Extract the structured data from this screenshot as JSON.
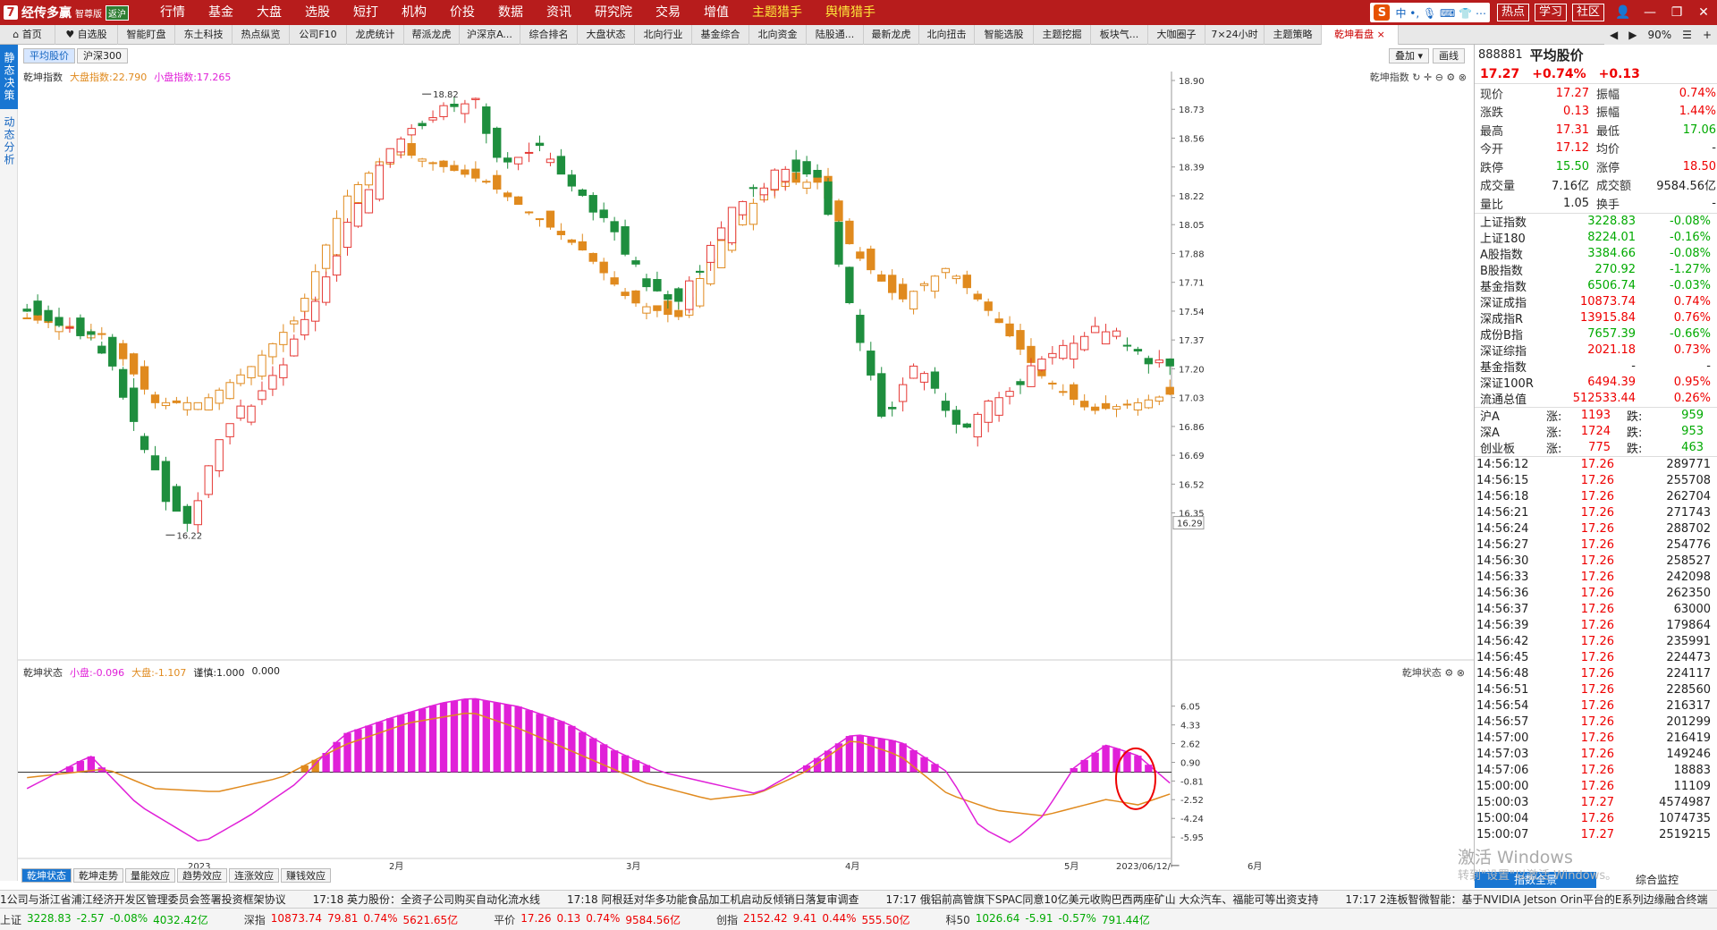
{
  "app": {
    "logo": "经传多赢",
    "edition": "智尊版",
    "badge": "返沪"
  },
  "menu": [
    {
      "label": "行情",
      "dot": true
    },
    {
      "label": "基金"
    },
    {
      "label": "大盘"
    },
    {
      "label": "选股",
      "dot": true
    },
    {
      "label": "短打",
      "dot": true
    },
    {
      "label": "机构"
    },
    {
      "label": "价投",
      "dot": true
    },
    {
      "label": "数据"
    },
    {
      "label": "资讯",
      "dot": true
    },
    {
      "label": "研究院"
    },
    {
      "label": "交易",
      "dot": true
    },
    {
      "label": "增值",
      "dot": true
    },
    {
      "label": "主题猎手",
      "y": true,
      "dot": true
    },
    {
      "label": "舆情猎手",
      "y": true
    }
  ],
  "ime": {
    "logo": "S",
    "text": "中 •, 🎙 ⌨ 👕 ⋯"
  },
  "header_btns": [
    "热点",
    "学习",
    "社区"
  ],
  "window_btns": [
    "👤",
    "—",
    "❐",
    "✕"
  ],
  "tabs": [
    "⌂ 首页",
    "♥ 自选股",
    "智能盯盘",
    "东土科技",
    "热点纵览",
    "公司F10",
    "龙虎统计",
    "帮派龙虎",
    "沪深京A...",
    "综合排名",
    "大盘状态",
    "北向行业",
    "基金综合",
    "北向资金",
    "陆股通...",
    "最新龙虎",
    "北向扭击",
    "智能选股",
    "主题挖掘",
    "板块气...",
    "大咖圈子",
    "7×24小时",
    "主题策略",
    "乾坤看盘 ×"
  ],
  "tabs_right": [
    "◀",
    "▶",
    "90%",
    "☰",
    "+"
  ],
  "sidebar": [
    "静态决策",
    "动态分析"
  ],
  "subtabs": [
    "平均股价",
    "沪深300"
  ],
  "overlay_btns": [
    "叠加 ▾",
    "画线"
  ],
  "legend_main": {
    "name": "乾坤指数",
    "big": "大盘指数:22.790",
    "small": "小盘指数:17.265"
  },
  "top_right_title": "乾坤指数 ↻ ✛ ⊖ ⚙ ⊗",
  "legend_sub": {
    "name": "乾坤状态",
    "small": "小盘:-0.096",
    "big": "大盘:-1.107",
    "c1": "谨慎:1.000",
    "c2": "0.000"
  },
  "sub_right_title": "乾坤状态 ⚙ ⊗",
  "bottom_tabs": [
    "乾坤状态",
    "乾坤走势",
    "量能效应",
    "趋势效应",
    "连涨效应",
    "赚钱效应"
  ],
  "chart_data": {
    "type": "candlestick",
    "title": "乾坤指数",
    "y_ticks": [
      "18.90",
      "18.73",
      "18.56",
      "18.39",
      "18.22",
      "18.05",
      "17.88",
      "17.71",
      "17.54",
      "17.37",
      "17.20",
      "17.03",
      "16.86",
      "16.69",
      "16.52",
      "16.35"
    ],
    "last_price_tag": "16.29",
    "high_label": "18.82",
    "low_label": "16.22",
    "x_labels": [
      "2023",
      "2月",
      "3月",
      "4月",
      "5月",
      "6月"
    ],
    "date_tag": "2023/06/12/一",
    "ylim": [
      16.29,
      18.9
    ],
    "series_note": "orange = 大盘指数, green/red = 小盘指数",
    "sub_y_ticks": [
      "6.05",
      "4.33",
      "2.62",
      "0.90",
      "-0.81",
      "-2.52",
      "-4.24",
      "-5.95"
    ],
    "sub_ylim": [
      -7.5,
      7.5
    ]
  },
  "stock": {
    "code": "888881",
    "name": "平均股价",
    "price": "17.27",
    "pct": "+0.74%",
    "chg": "+0.13"
  },
  "quote": [
    [
      "现价",
      "17.27",
      "振幅",
      "0.74%"
    ],
    [
      "涨跌",
      "0.13",
      "振幅",
      "1.44%"
    ],
    [
      "最高",
      "17.31",
      "最低",
      "17.06"
    ],
    [
      "今开",
      "17.12",
      "均价",
      "-"
    ],
    [
      "跌停",
      "15.50",
      "涨停",
      "18.50"
    ],
    [
      "成交量",
      "7.16亿",
      "成交额",
      "9584.56亿"
    ],
    [
      "量比",
      "1.05",
      "换手",
      "-"
    ]
  ],
  "indices": [
    [
      "上证指数",
      "3228.83",
      "-0.08%"
    ],
    [
      "上证180",
      "8224.01",
      "-0.16%"
    ],
    [
      "A股指数",
      "3384.66",
      "-0.08%"
    ],
    [
      "B股指数",
      "270.92",
      "-1.27%"
    ],
    [
      "基金指数",
      "6506.74",
      "-0.03%"
    ],
    [
      "深证成指",
      "10873.74",
      "0.74%"
    ],
    [
      "深成指R",
      "13915.84",
      "0.76%"
    ],
    [
      "成份B指",
      "7657.39",
      "-0.66%"
    ],
    [
      "深证综指",
      "2021.18",
      "0.73%"
    ],
    [
      "基金指数",
      "-",
      "-"
    ],
    [
      "深证100R",
      "6494.39",
      "0.95%"
    ],
    [
      "流通总值",
      "512533.44",
      "0.26%"
    ]
  ],
  "updown": [
    [
      "沪A",
      "涨:",
      "1193",
      "跌:",
      "959"
    ],
    [
      "深A",
      "涨:",
      "1724",
      "跌:",
      "953"
    ],
    [
      "创业板",
      "涨:",
      "775",
      "跌:",
      "463"
    ]
  ],
  "ticks": [
    [
      "14:56:12",
      "17.26",
      "289771"
    ],
    [
      "14:56:15",
      "17.26",
      "255708"
    ],
    [
      "14:56:18",
      "17.26",
      "262704"
    ],
    [
      "14:56:21",
      "17.26",
      "271743"
    ],
    [
      "14:56:24",
      "17.26",
      "288702"
    ],
    [
      "14:56:27",
      "17.26",
      "254776"
    ],
    [
      "14:56:30",
      "17.26",
      "258527"
    ],
    [
      "14:56:33",
      "17.26",
      "242098"
    ],
    [
      "14:56:36",
      "17.26",
      "262350"
    ],
    [
      "14:56:37",
      "17.26",
      "63000"
    ],
    [
      "14:56:39",
      "17.26",
      "179864"
    ],
    [
      "14:56:42",
      "17.26",
      "235991"
    ],
    [
      "14:56:45",
      "17.26",
      "224473"
    ],
    [
      "14:56:48",
      "17.26",
      "224117"
    ],
    [
      "14:56:51",
      "17.26",
      "228560"
    ],
    [
      "14:56:54",
      "17.26",
      "216317"
    ],
    [
      "14:56:57",
      "17.26",
      "201299"
    ],
    [
      "14:57:00",
      "17.26",
      "216419"
    ],
    [
      "14:57:03",
      "17.26",
      "149246"
    ],
    [
      "14:57:06",
      "17.26",
      "18883"
    ],
    [
      "15:00:00",
      "17.26",
      "11109"
    ],
    [
      "15:00:03",
      "17.27",
      "4574987"
    ],
    [
      "15:00:04",
      "17.26",
      "1074735"
    ],
    [
      "15:00:07",
      "17.27",
      "2519215"
    ]
  ],
  "right_bottom_tabs": [
    "指数全景",
    "综合监控"
  ],
  "watermark": "激活 Windows",
  "watermark2": "转到\"设置\"以激活 Windows。",
  "news": [
    "1公司与浙江省浦江经济开发区管理委员会签署投资框架协议",
    "17:18 英力股份：全资子公司购买自动化流水线",
    "17:18 阿根廷对华多功能食品加工机启动反倾销日落复审调查",
    "17:17 俄铝前高管旗下SPAC同意10亿美元收购巴西两座矿山 大众汽车、福能可等出资支持",
    "17:17 2连板智微智能：基于NVIDIA Jetson Orin平台的E系列边缘融合终端"
  ],
  "status": [
    {
      "name": "上证",
      "v": "3228.83",
      "c": "-2.57",
      "p": "-0.08%",
      "a": "4032.42亿",
      "col": "grn"
    },
    {
      "name": "深指",
      "v": "10873.74",
      "c": "79.81",
      "p": "0.74%",
      "a": "5621.65亿",
      "col": "red"
    },
    {
      "name": "平价",
      "v": "17.26",
      "c": "0.13",
      "p": "0.74%",
      "a": "9584.56亿",
      "col": "red"
    },
    {
      "name": "创指",
      "v": "2152.42",
      "c": "9.41",
      "p": "0.44%",
      "a": "555.50亿",
      "col": "red"
    },
    {
      "name": "科50",
      "v": "1026.64",
      "c": "-5.91",
      "p": "-0.57%",
      "a": "791.44亿",
      "col": "grn"
    }
  ]
}
